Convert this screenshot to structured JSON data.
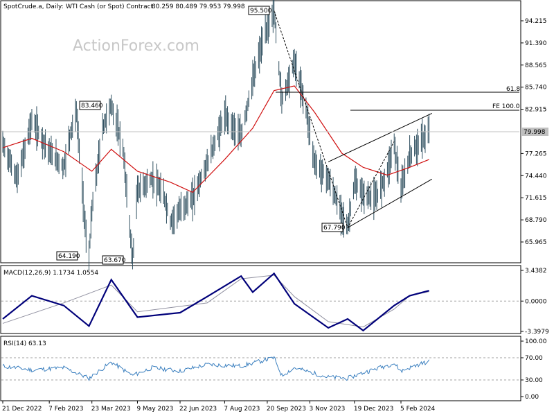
{
  "header": {
    "symbol": "SpotCrude.a, Daily:",
    "contract": "WTI Cash (or Spot) Contract",
    "ohlc": "80.259 80.489 79.953 79.998"
  },
  "watermark": "ActionForex.com",
  "price_ticks": [
    "94.215",
    "91.390",
    "88.565",
    "85.740",
    "82.915",
    "77.265",
    "74.440",
    "71.615",
    "68.790",
    "65.965"
  ],
  "current_price": "79.998",
  "macd": {
    "label": "MACD(12,26,9) 1.1734 1.0554",
    "ticks": [
      "3.4382",
      "0.0000",
      "-3.3979"
    ]
  },
  "rsi": {
    "label": "RSI(14) 63.13",
    "ticks": [
      "100.00",
      "70.00",
      "30.00",
      "0.00"
    ]
  },
  "x_ticks": [
    "21 Dec 2022",
    "7 Feb 2023",
    "23 Mar 2023",
    "9 May 2023",
    "22 Jun 2023",
    "7 Aug 2023",
    "20 Sep 2023",
    "3 Nov 2023",
    "19 Dec 2023",
    "5 Feb 2024"
  ],
  "annotations": {
    "fib_level": "61.8",
    "fe_level": "FE 100.0",
    "peak_high": "95.500",
    "h1": "83.460",
    "l1": "64.190",
    "l2": "63.670",
    "l3": "67.790"
  },
  "colors": {
    "bars": "#2f4f5f",
    "ma": "#d01010",
    "macd": "#00007a",
    "signal": "#9090a0",
    "rsi": "#3a7fbf"
  },
  "chart_data": {
    "type": "line",
    "title": "",
    "price_series": [
      {
        "date": "2022-12-21",
        "close": 78.5
      },
      {
        "date": "2023-01-05",
        "close": 74.0
      },
      {
        "date": "2023-01-20",
        "close": 81.5
      },
      {
        "date": "2023-02-07",
        "close": 77.5
      },
      {
        "date": "2023-02-22",
        "close": 75.5
      },
      {
        "date": "2023-03-01",
        "close": 80.0
      },
      {
        "date": "2023-03-07",
        "close": 82.5
      },
      {
        "date": "2023-03-17",
        "close": 66.5
      },
      {
        "date": "2023-03-20",
        "close": 64.19
      },
      {
        "date": "2023-03-23",
        "close": 70.0
      },
      {
        "date": "2023-04-03",
        "close": 80.5
      },
      {
        "date": "2023-04-12",
        "close": 83.46
      },
      {
        "date": "2023-04-24",
        "close": 78.0
      },
      {
        "date": "2023-05-04",
        "close": 63.67
      },
      {
        "date": "2023-05-09",
        "close": 72.5
      },
      {
        "date": "2023-05-24",
        "close": 74.0
      },
      {
        "date": "2023-06-05",
        "close": 72.0
      },
      {
        "date": "2023-06-12",
        "close": 68.5
      },
      {
        "date": "2023-06-22",
        "close": 70.0
      },
      {
        "date": "2023-07-05",
        "close": 71.5
      },
      {
        "date": "2023-07-20",
        "close": 76.0
      },
      {
        "date": "2023-08-07",
        "close": 82.0
      },
      {
        "date": "2023-08-24",
        "close": 79.5
      },
      {
        "date": "2023-09-05",
        "close": 86.5
      },
      {
        "date": "2023-09-15",
        "close": 91.5
      },
      {
        "date": "2023-09-27",
        "close": 95.5
      },
      {
        "date": "2023-10-05",
        "close": 84.0
      },
      {
        "date": "2023-10-18",
        "close": 89.0
      },
      {
        "date": "2023-10-30",
        "close": 83.0
      },
      {
        "date": "2023-11-08",
        "close": 76.0
      },
      {
        "date": "2023-11-22",
        "close": 74.0
      },
      {
        "date": "2023-12-06",
        "close": 69.5
      },
      {
        "date": "2023-12-12",
        "close": 67.79
      },
      {
        "date": "2023-12-19",
        "close": 73.5
      },
      {
        "date": "2023-12-28",
        "close": 72.0
      },
      {
        "date": "2024-01-10",
        "close": 71.5
      },
      {
        "date": "2024-01-22",
        "close": 75.0
      },
      {
        "date": "2024-01-29",
        "close": 78.5
      },
      {
        "date": "2024-02-05",
        "close": 72.5
      },
      {
        "date": "2024-02-14",
        "close": 77.0
      },
      {
        "date": "2024-02-23",
        "close": 78.5
      },
      {
        "date": "2024-03-05",
        "close": 79.998
      }
    ],
    "ma_series": [
      {
        "date": "2022-12-21",
        "value": 78.0
      },
      {
        "date": "2023-01-20",
        "value": 79.2
      },
      {
        "date": "2023-02-22",
        "value": 77.5
      },
      {
        "date": "2023-03-23",
        "value": 75.0
      },
      {
        "date": "2023-04-12",
        "value": 77.8
      },
      {
        "date": "2023-05-09",
        "value": 75.0
      },
      {
        "date": "2023-06-12",
        "value": 73.6
      },
      {
        "date": "2023-07-05",
        "value": 72.3
      },
      {
        "date": "2023-08-07",
        "value": 76.5
      },
      {
        "date": "2023-09-05",
        "value": 80.5
      },
      {
        "date": "2023-09-27",
        "value": 85.3
      },
      {
        "date": "2023-10-18",
        "value": 85.9
      },
      {
        "date": "2023-11-08",
        "value": 82.5
      },
      {
        "date": "2023-12-06",
        "value": 77.3
      },
      {
        "date": "2023-12-28",
        "value": 75.5
      },
      {
        "date": "2024-01-22",
        "value": 74.5
      },
      {
        "date": "2024-02-14",
        "value": 75.5
      },
      {
        "date": "2024-03-05",
        "value": 76.5
      }
    ],
    "macd_series": [
      {
        "date": "2022-12-21",
        "value": -2.0
      },
      {
        "date": "2023-01-20",
        "value": 0.6
      },
      {
        "date": "2023-02-22",
        "value": -0.5
      },
      {
        "date": "2023-03-20",
        "value": -2.8
      },
      {
        "date": "2023-04-12",
        "value": 2.4
      },
      {
        "date": "2023-05-09",
        "value": -1.8
      },
      {
        "date": "2023-06-22",
        "value": -1.3
      },
      {
        "date": "2023-07-20",
        "value": 0.5
      },
      {
        "date": "2023-08-24",
        "value": 2.8
      },
      {
        "date": "2023-09-05",
        "value": 1.0
      },
      {
        "date": "2023-09-27",
        "value": 3.1
      },
      {
        "date": "2023-10-18",
        "value": -0.3
      },
      {
        "date": "2023-11-22",
        "value": -3.0
      },
      {
        "date": "2023-12-12",
        "value": -2.0
      },
      {
        "date": "2023-12-28",
        "value": -3.3
      },
      {
        "date": "2024-01-29",
        "value": -0.5
      },
      {
        "date": "2024-02-14",
        "value": 0.6
      },
      {
        "date": "2024-03-05",
        "value": 1.1734
      }
    ],
    "signal_series": [
      {
        "date": "2022-12-21",
        "value": -2.5
      },
      {
        "date": "2023-02-22",
        "value": -0.2
      },
      {
        "date": "2023-04-12",
        "value": 1.8
      },
      {
        "date": "2023-05-09",
        "value": -1.2
      },
      {
        "date": "2023-07-20",
        "value": -0.2
      },
      {
        "date": "2023-08-24",
        "value": 2.5
      },
      {
        "date": "2023-09-27",
        "value": 2.9
      },
      {
        "date": "2023-10-18",
        "value": 0.5
      },
      {
        "date": "2023-11-22",
        "value": -2.3
      },
      {
        "date": "2023-12-28",
        "value": -2.9
      },
      {
        "date": "2024-01-29",
        "value": -0.9
      },
      {
        "date": "2024-02-14",
        "value": 0.6
      },
      {
        "date": "2024-03-05",
        "value": 1.0554
      }
    ],
    "rsi_series": [
      {
        "date": "2022-12-21",
        "value": 55
      },
      {
        "date": "2023-01-20",
        "value": 48
      },
      {
        "date": "2023-02-22",
        "value": 52
      },
      {
        "date": "2023-03-20",
        "value": 33
      },
      {
        "date": "2023-04-12",
        "value": 62
      },
      {
        "date": "2023-05-04",
        "value": 38
      },
      {
        "date": "2023-05-24",
        "value": 52
      },
      {
        "date": "2023-06-22",
        "value": 46
      },
      {
        "date": "2023-07-20",
        "value": 58
      },
      {
        "date": "2023-08-24",
        "value": 55
      },
      {
        "date": "2023-09-27",
        "value": 70
      },
      {
        "date": "2023-10-05",
        "value": 38
      },
      {
        "date": "2023-10-18",
        "value": 52
      },
      {
        "date": "2023-11-22",
        "value": 35
      },
      {
        "date": "2023-12-12",
        "value": 33
      },
      {
        "date": "2023-12-28",
        "value": 43
      },
      {
        "date": "2024-01-29",
        "value": 60
      },
      {
        "date": "2024-02-05",
        "value": 46
      },
      {
        "date": "2024-02-23",
        "value": 58
      },
      {
        "date": "2024-03-05",
        "value": 63.13
      }
    ],
    "levels": {
      "fib_61_8": 85.1,
      "fe_100": 82.6,
      "current": 79.998
    },
    "channel": {
      "upper": [
        {
          "date": "2023-11-22",
          "value": 76.2
        },
        {
          "date": "2024-03-08",
          "value": 82.4
        }
      ],
      "lower": [
        {
          "date": "2023-12-12",
          "value": 67.79
        },
        {
          "date": "2024-03-08",
          "value": 74.0
        }
      ]
    },
    "zigzag": [
      {
        "date": "2023-09-27",
        "value": 95.5
      },
      {
        "date": "2023-12-12",
        "value": 67.79
      },
      {
        "date": "2024-01-29",
        "value": 78.8
      }
    ],
    "macd_ylim": [
      -3.3979,
      3.4382
    ],
    "rsi_ylim": [
      0,
      100
    ],
    "rsi_levels": [
      70,
      30
    ]
  }
}
